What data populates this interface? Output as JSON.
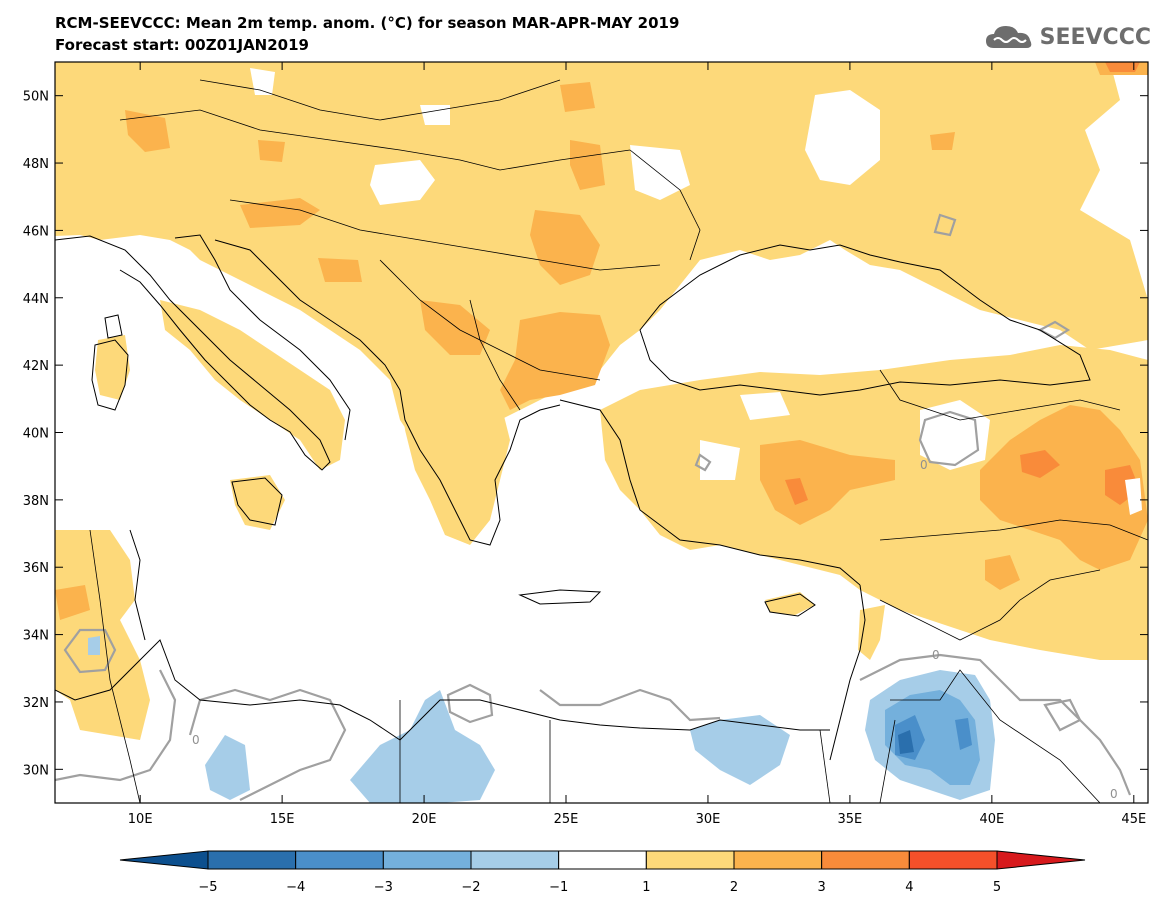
{
  "header": {
    "title_line1": "RCM-SEEVCCC: Mean 2m temp. anom. (°C) for season MAR-APR-MAY 2019",
    "title_line2": "Forecast start: 00Z01JAN2019"
  },
  "logo": {
    "text": "SEEVCCC",
    "icon": "cloud-logo-icon"
  },
  "map": {
    "lon_range": [
      7,
      45.5
    ],
    "lat_range": [
      29,
      51
    ],
    "lon_ticks": [
      "10E",
      "15E",
      "20E",
      "25E",
      "30E",
      "35E",
      "40E",
      "45E"
    ],
    "lon_tick_values": [
      10,
      15,
      20,
      25,
      30,
      35,
      40,
      45
    ],
    "lat_ticks": [
      "30N",
      "32N",
      "34N",
      "36N",
      "38N",
      "40N",
      "42N",
      "44N",
      "46N",
      "48N",
      "50N"
    ],
    "lat_tick_values": [
      30,
      32,
      34,
      36,
      38,
      40,
      42,
      44,
      46,
      48,
      50
    ],
    "contour_label": "0"
  },
  "colorbar": {
    "labels": [
      "−5",
      "−4",
      "−3",
      "−2",
      "−1",
      "1",
      "2",
      "3",
      "4",
      "5"
    ],
    "colors": [
      "#0c4f8e",
      "#2a6fad",
      "#4a8fca",
      "#74b0dc",
      "#a6cde8",
      "#ffffff",
      "#fdd97a",
      "#fbb34d",
      "#f98b3a",
      "#f5502a",
      "#d7191c"
    ],
    "colors_note_ignore": ""
  },
  "legend_colors": {
    "land_pos1": "#fdd97a",
    "land_pos2": "#fbb34d",
    "land_pos3": "#f98b3a",
    "neg1": "#a6cde8",
    "neg2": "#74b0dc",
    "neg3": "#4a8fca",
    "neg4": "#2a6fad"
  }
}
